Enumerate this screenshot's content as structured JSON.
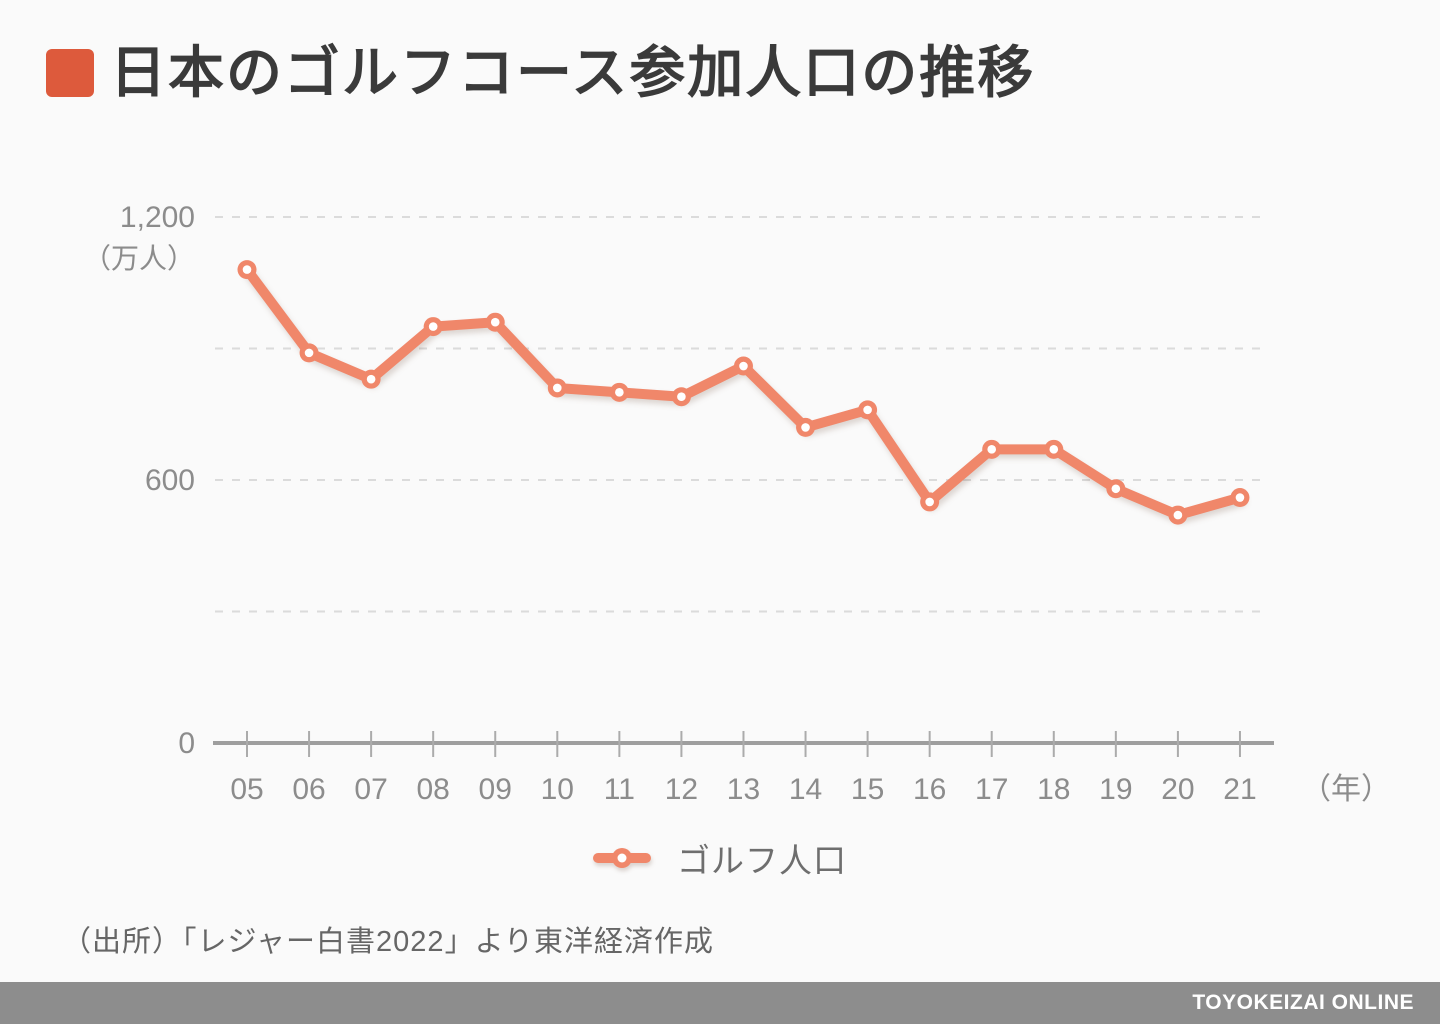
{
  "title": "日本のゴルフコース参加人口の推移",
  "source": "（出所）「レジャー白書2022」より東洋経済作成",
  "footer": {
    "brand": "TOYOKEIZAI ONLINE"
  },
  "legend": {
    "label": "ゴルフ人口"
  },
  "colors": {
    "accent": "#DD5A3C",
    "line": "#F0876A",
    "marker_core": "#FFFFFF",
    "grid": "#DBDBDB",
    "axis": "#9E9E9E",
    "tick": "#ABABAB",
    "label": "#8C8C8C",
    "title_text": "#3A3A3A",
    "footer_bg": "#8D8D8D",
    "background": "#FAFAFA"
  },
  "chart_data": {
    "type": "line",
    "title": "日本のゴルフコース参加人口の推移",
    "categories": [
      "05",
      "06",
      "07",
      "08",
      "09",
      "10",
      "11",
      "12",
      "13",
      "14",
      "15",
      "16",
      "17",
      "18",
      "19",
      "20",
      "21"
    ],
    "series": [
      {
        "name": "ゴルフ人口",
        "values": [
          1080,
          890,
          830,
          950,
          960,
          810,
          800,
          790,
          860,
          720,
          760,
          550,
          670,
          670,
          580,
          520,
          560
        ]
      }
    ],
    "unit": "万人",
    "xlabel": "（年）",
    "ylabel": "（万人）",
    "ylim": [
      0,
      1200
    ],
    "yticks_labeled": [
      1200,
      600,
      0
    ],
    "gridline_values": [
      1200,
      900,
      600,
      300
    ],
    "grid_style": "dashed horizontal",
    "legend_position": "bottom"
  }
}
